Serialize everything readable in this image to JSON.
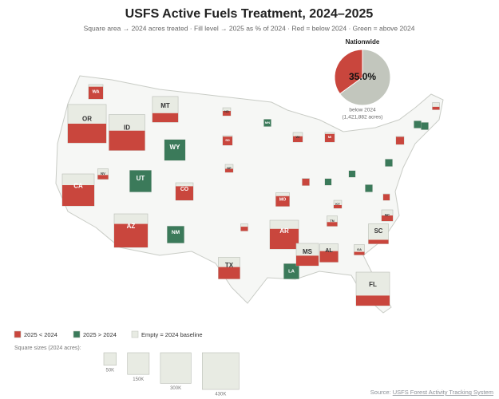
{
  "chart_data": {
    "type": "square-map",
    "title": "USFS Active Fuels Treatment, 2024–2025",
    "subtitle": "Square area → 2024 acres treated · Fill level → 2025 as % of 2024 · Red = below 2024 · Green = above 2024",
    "colors": {
      "below": "#c9463d",
      "above": "#3b7a5a",
      "empty": "#e8ebe3",
      "rest": "#c2c6bd"
    },
    "states": [
      {
        "label": "WA",
        "acres": 66000,
        "pct": 85
      },
      {
        "label": "OR",
        "acres": 470000,
        "pct": 50
      },
      {
        "label": "ID",
        "acres": 410000,
        "pct": 55
      },
      {
        "label": "MT",
        "acres": 210000,
        "pct": 35
      },
      {
        "label": "WY",
        "acres": 137000,
        "pct": 130
      },
      {
        "label": "CA",
        "acres": 325000,
        "pct": 65
      },
      {
        "label": "NV",
        "acres": 35000,
        "pct": 40
      },
      {
        "label": "UT",
        "acres": 148000,
        "pct": 120
      },
      {
        "label": "CO",
        "acres": 98000,
        "pct": 80
      },
      {
        "label": "AZ",
        "acres": 358000,
        "pct": 70
      },
      {
        "label": "NM",
        "acres": 90000,
        "pct": 115
      },
      {
        "label": "ND",
        "acres": 20000,
        "pct": 60
      },
      {
        "label": "SD",
        "acres": 29000,
        "pct": 90
      },
      {
        "label": "NE",
        "acres": 20000,
        "pct": 45
      },
      {
        "label": null,
        "acres": 16000,
        "pct": 60
      },
      {
        "label": "TX",
        "acres": 148000,
        "pct": 55
      },
      {
        "label": "MN",
        "acres": 16000,
        "pct": 125
      },
      {
        "label": "WI",
        "acres": 29000,
        "pct": 60
      },
      {
        "label": "MI",
        "acres": 29000,
        "pct": 85
      },
      {
        "label": "MO",
        "acres": 59000,
        "pct": 75
      },
      {
        "label": "AR",
        "acres": 263000,
        "pct": 70
      },
      {
        "label": "LA",
        "acres": 73000,
        "pct": 110
      },
      {
        "label": "MS",
        "acres": 159000,
        "pct": 45
      },
      {
        "label": "AL",
        "acres": 107000,
        "pct": 60
      },
      {
        "label": null,
        "acres": 16000,
        "pct": 95
      },
      {
        "label": null,
        "acres": 13000,
        "pct": 115
      },
      {
        "label": null,
        "acres": 13000,
        "pct": 120
      },
      {
        "label": "KY",
        "acres": 20000,
        "pct": 40
      },
      {
        "label": "TN",
        "acres": 34000,
        "pct": 40
      },
      {
        "label": "GA",
        "acres": 34000,
        "pct": 30
      },
      {
        "label": "SC",
        "acres": 127000,
        "pct": 20
      },
      {
        "label": "NC",
        "acres": 40000,
        "pct": 50
      },
      {
        "label": null,
        "acres": 13000,
        "pct": 95
      },
      {
        "label": null,
        "acres": 16000,
        "pct": 115
      },
      {
        "label": null,
        "acres": 16000,
        "pct": 120
      },
      {
        "label": null,
        "acres": 20000,
        "pct": 95
      },
      {
        "label": null,
        "acres": 16000,
        "pct": 115
      },
      {
        "label": null,
        "acres": 16000,
        "pct": 115
      },
      {
        "label": null,
        "acres": 16000,
        "pct": 40
      },
      {
        "label": "FL",
        "acres": 358000,
        "pct": 30
      }
    ],
    "summary": {
      "title": "Nationwide",
      "value": 35.0,
      "value_label": "35.0%",
      "caption": "below 2024",
      "acres_label": "(1,421,882 acres)"
    },
    "legend": {
      "below": "2025 < 2024",
      "above": "2025 > 2024",
      "empty": "Empty = 2024 baseline"
    },
    "size_legend": {
      "title": "Square sizes (2024 acres):",
      "ticks": [
        {
          "value": 50000,
          "label": "50K"
        },
        {
          "value": 150000,
          "label": "150K"
        },
        {
          "value": 300000,
          "label": "300K"
        },
        {
          "value": 430000,
          "label": "430K"
        }
      ]
    },
    "source": {
      "prefix": "Source:",
      "link": "USFS Forest Activity Tracking System"
    }
  }
}
